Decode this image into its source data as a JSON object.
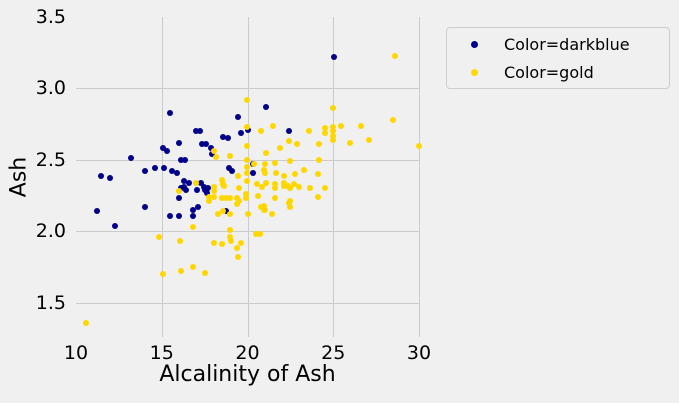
{
  "colors": {
    "background": "#f0f0f0",
    "gridline": "#cbcbcb",
    "text": "#000000",
    "series_darkblue": "#00008B",
    "series_gold": "#FFD700"
  },
  "chart_data": {
    "type": "scatter",
    "title": "",
    "xlabel": "Alcalinity of Ash",
    "ylabel": "Ash",
    "xlim": [
      10,
      30
    ],
    "ylim": [
      1.26,
      3.5
    ],
    "x_ticks": [
      "10",
      "15",
      "20",
      "25",
      "30"
    ],
    "x_tick_values": [
      10,
      15,
      20,
      25,
      30
    ],
    "y_ticks": [
      "3.5",
      "3.0",
      "2.5",
      "2.0",
      "1.5"
    ],
    "y_tick_values": [
      3.5,
      3.0,
      2.5,
      2.0,
      1.5
    ],
    "x_gridlines": [
      15,
      20,
      25,
      30
    ],
    "y_gridlines": [
      3.0,
      2.5,
      2.0,
      1.5
    ],
    "grid": true,
    "legend_position": "outside-upper-right",
    "series": [
      {
        "name": "Color=darkblue",
        "color": "#00008B",
        "points": [
          [
            15.5,
            2.83
          ],
          [
            19.45,
            2.8
          ],
          [
            21.1,
            2.87
          ],
          [
            25.05,
            3.22
          ],
          [
            20.05,
            2.71
          ],
          [
            19.6,
            2.69
          ],
          [
            17.0,
            2.7
          ],
          [
            17.25,
            2.7
          ],
          [
            18.6,
            2.66
          ],
          [
            18.85,
            2.65
          ],
          [
            22.4,
            2.7
          ],
          [
            16.0,
            2.62
          ],
          [
            17.35,
            2.61
          ],
          [
            17.6,
            2.61
          ],
          [
            17.85,
            2.58
          ],
          [
            17.95,
            2.54
          ],
          [
            15.05,
            2.58
          ],
          [
            15.3,
            2.56
          ],
          [
            13.2,
            2.51
          ],
          [
            16.1,
            2.5
          ],
          [
            16.35,
            2.5
          ],
          [
            20.3,
            2.47
          ],
          [
            20.3,
            2.41
          ],
          [
            14.0,
            2.42
          ],
          [
            14.6,
            2.44
          ],
          [
            15.15,
            2.44
          ],
          [
            15.6,
            2.42
          ],
          [
            15.9,
            2.41
          ],
          [
            18.9,
            2.44
          ],
          [
            19.1,
            2.42
          ],
          [
            11.45,
            2.39
          ],
          [
            12.0,
            2.37
          ],
          [
            16.3,
            2.35
          ],
          [
            16.6,
            2.34
          ],
          [
            17.3,
            2.34
          ],
          [
            16.3,
            2.31
          ],
          [
            17.45,
            2.31
          ],
          [
            17.7,
            2.3
          ],
          [
            17.05,
            2.29
          ],
          [
            16.1,
            2.3
          ],
          [
            16.4,
            2.29
          ],
          [
            17.5,
            2.29
          ],
          [
            17.65,
            2.27
          ],
          [
            16.0,
            2.23
          ],
          [
            18.75,
            2.14
          ],
          [
            16.85,
            2.15
          ],
          [
            16.85,
            2.11
          ],
          [
            15.5,
            2.11
          ],
          [
            16.0,
            2.11
          ],
          [
            11.2,
            2.14
          ],
          [
            14.0,
            2.17
          ],
          [
            17.1,
            2.17
          ],
          [
            12.3,
            2.04
          ]
        ]
      },
      {
        "name": "Color=gold",
        "color": "#FFD700",
        "points": [
          [
            28.6,
            3.23
          ],
          [
            19.95,
            2.92
          ],
          [
            25.0,
            2.86
          ],
          [
            28.5,
            2.78
          ],
          [
            21.5,
            2.74
          ],
          [
            19.97,
            2.73
          ],
          [
            26.6,
            2.74
          ],
          [
            25.45,
            2.74
          ],
          [
            24.5,
            2.72
          ],
          [
            23.6,
            2.7
          ],
          [
            20.8,
            2.7
          ],
          [
            25.0,
            2.73
          ],
          [
            25.0,
            2.7
          ],
          [
            25.0,
            2.67
          ],
          [
            25.0,
            2.64
          ],
          [
            24.5,
            2.69
          ],
          [
            27.1,
            2.64
          ],
          [
            26.0,
            2.62
          ],
          [
            22.4,
            2.63
          ],
          [
            22.9,
            2.61
          ],
          [
            30.0,
            2.6
          ],
          [
            24.15,
            2.61
          ],
          [
            21.9,
            2.58
          ],
          [
            19.97,
            2.6
          ],
          [
            18.05,
            2.56
          ],
          [
            18.15,
            2.52
          ],
          [
            21.1,
            2.55
          ],
          [
            19.0,
            2.53
          ],
          [
            19.97,
            2.5
          ],
          [
            24.15,
            2.5
          ],
          [
            20.4,
            2.47
          ],
          [
            21.0,
            2.47
          ],
          [
            21.6,
            2.48
          ],
          [
            22.5,
            2.49
          ],
          [
            19.45,
            2.39
          ],
          [
            19.97,
            2.45
          ],
          [
            19.97,
            2.41
          ],
          [
            20.95,
            2.43
          ],
          [
            21.0,
            2.41
          ],
          [
            21.65,
            2.41
          ],
          [
            22.1,
            2.39
          ],
          [
            22.75,
            2.4
          ],
          [
            24.1,
            2.4
          ],
          [
            23.3,
            2.43
          ],
          [
            17.0,
            2.34
          ],
          [
            18.5,
            2.36
          ],
          [
            18.6,
            2.33
          ],
          [
            19.97,
            2.35
          ],
          [
            20.55,
            2.33
          ],
          [
            21.1,
            2.34
          ],
          [
            21.6,
            2.33
          ],
          [
            22.1,
            2.34
          ],
          [
            22.7,
            2.33
          ],
          [
            18.05,
            2.31
          ],
          [
            18.05,
            2.28
          ],
          [
            18.65,
            2.32
          ],
          [
            19.5,
            2.3
          ],
          [
            20.85,
            2.31
          ],
          [
            21.6,
            2.3
          ],
          [
            22.1,
            2.32
          ],
          [
            22.35,
            2.32
          ],
          [
            22.5,
            2.3
          ],
          [
            23.0,
            2.31
          ],
          [
            23.65,
            2.3
          ],
          [
            24.5,
            2.3
          ],
          [
            19.9,
            2.26
          ],
          [
            19.9,
            2.23
          ],
          [
            20.6,
            2.25
          ],
          [
            17.75,
            2.24
          ],
          [
            17.75,
            2.21
          ],
          [
            18.05,
            2.24
          ],
          [
            18.5,
            2.23
          ],
          [
            18.75,
            2.23
          ],
          [
            19.0,
            2.23
          ],
          [
            19.4,
            2.23
          ],
          [
            19.5,
            2.21
          ],
          [
            21.6,
            2.23
          ],
          [
            22.5,
            2.21
          ],
          [
            20.95,
            2.18
          ],
          [
            20.95,
            2.15
          ],
          [
            21.4,
            2.12
          ],
          [
            24.1,
            2.24
          ],
          [
            16.0,
            2.28
          ],
          [
            18.3,
            2.12
          ],
          [
            18.55,
            2.14
          ],
          [
            19.0,
            2.12
          ],
          [
            19.4,
            2.19
          ],
          [
            20.0,
            2.12
          ],
          [
            22.4,
            2.2
          ],
          [
            22.5,
            2.17
          ],
          [
            20.8,
            2.17
          ],
          [
            21.0,
            2.15
          ],
          [
            16.85,
            2.03
          ],
          [
            19.0,
            2.01
          ],
          [
            19.0,
            1.96
          ],
          [
            14.85,
            1.96
          ],
          [
            20.5,
            1.98
          ],
          [
            20.75,
            1.98
          ],
          [
            18.05,
            1.92
          ],
          [
            18.5,
            1.91
          ],
          [
            19.05,
            1.93
          ],
          [
            19.6,
            1.92
          ],
          [
            19.4,
            1.88
          ],
          [
            19.45,
            1.82
          ],
          [
            16.8,
            1.75
          ],
          [
            17.5,
            1.71
          ],
          [
            16.05,
            1.93
          ],
          [
            16.1,
            1.72
          ],
          [
            15.05,
            1.7
          ],
          [
            10.6,
            1.36
          ]
        ]
      }
    ]
  }
}
